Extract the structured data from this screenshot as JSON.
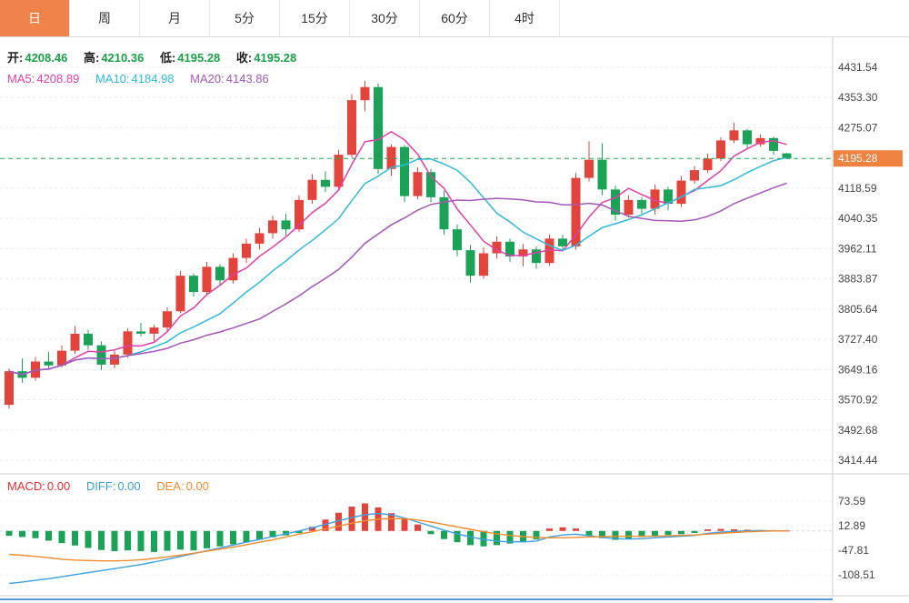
{
  "header": {
    "tabs": [
      {
        "label": "日",
        "active": true
      },
      {
        "label": "周",
        "active": false
      },
      {
        "label": "月",
        "active": false
      },
      {
        "label": "5分",
        "active": false
      },
      {
        "label": "15分",
        "active": false
      },
      {
        "label": "30分",
        "active": false
      },
      {
        "label": "60分",
        "active": false
      },
      {
        "label": "4时",
        "active": false
      }
    ]
  },
  "ohlc_bar": {
    "open_label": "开:",
    "open_value": "4208.46",
    "high_label": "高:",
    "high_value": "4210.36",
    "low_label": "低:",
    "low_value": "4195.28",
    "close_label": "收:",
    "close_value": "4195.28"
  },
  "ma_bar": {
    "ma5_label": "MA5:",
    "ma5_value": "4208.89",
    "ma10_label": "MA10:",
    "ma10_value": "4184.98",
    "ma20_label": "MA20:",
    "ma20_value": "4143.86"
  },
  "macd_bar": {
    "macd_label": "MACD:",
    "macd_value": "0.00",
    "diff_label": "DIFF:",
    "diff_value": "0.00",
    "dea_label": "DEA:",
    "dea_value": "0.00"
  },
  "price_axis": {
    "labels": [
      "4431.54",
      "4353.30",
      "4275.07",
      "4118.59",
      "4040.35",
      "3962.11",
      "3883.87",
      "3805.64",
      "3727.40",
      "3649.16",
      "3570.92",
      "3492.68",
      "3414.44"
    ],
    "current_price": "4195.28"
  },
  "macd_axis": {
    "labels": [
      "73.59",
      "12.89",
      "-47.81",
      "-108.51"
    ]
  },
  "colors": {
    "up": "#e2443c",
    "down": "#1aa357",
    "ma5": "#e03fa8",
    "ma10": "#2fb9dd",
    "ma20": "#a457b8",
    "macd": "#e03131",
    "diff": "#3d9fe0",
    "dea": "#f08c2e",
    "ohlc_value": "#1ca049",
    "price_tag_bg": "#f0823f",
    "price_line": "#2aa84f",
    "tab_active_bg": "#f0824c"
  },
  "chart_data": {
    "type": "candlestick",
    "timeframe": "日",
    "title": "",
    "price_range": [
      3403,
      4497
    ],
    "price_gridline_step": 78.235,
    "current_price": 4195.28,
    "ma_periods": [
      5,
      10,
      20
    ],
    "ohlc": [
      [
        3558,
        3652,
        3548,
        3645
      ],
      [
        3645,
        3678,
        3615,
        3628
      ],
      [
        3628,
        3682,
        3620,
        3670
      ],
      [
        3670,
        3695,
        3648,
        3660
      ],
      [
        3660,
        3712,
        3655,
        3698
      ],
      [
        3698,
        3762,
        3690,
        3742
      ],
      [
        3742,
        3752,
        3700,
        3712
      ],
      [
        3712,
        3722,
        3648,
        3662
      ],
      [
        3662,
        3698,
        3652,
        3688
      ],
      [
        3688,
        3756,
        3680,
        3748
      ],
      [
        3748,
        3770,
        3735,
        3742
      ],
      [
        3742,
        3765,
        3722,
        3758
      ],
      [
        3758,
        3810,
        3748,
        3800
      ],
      [
        3800,
        3905,
        3795,
        3892
      ],
      [
        3892,
        3898,
        3838,
        3850
      ],
      [
        3850,
        3928,
        3844,
        3915
      ],
      [
        3915,
        3922,
        3866,
        3880
      ],
      [
        3880,
        3950,
        3872,
        3938
      ],
      [
        3938,
        3988,
        3925,
        3975
      ],
      [
        3975,
        4016,
        3960,
        4002
      ],
      [
        4002,
        4048,
        3988,
        4035
      ],
      [
        4035,
        4052,
        3996,
        4012
      ],
      [
        4012,
        4100,
        4005,
        4088
      ],
      [
        4088,
        4155,
        4078,
        4140
      ],
      [
        4140,
        4162,
        4108,
        4122
      ],
      [
        4122,
        4218,
        4114,
        4205
      ],
      [
        4205,
        4362,
        4198,
        4346
      ],
      [
        4346,
        4396,
        4318,
        4380
      ],
      [
        4380,
        4390,
        4156,
        4168
      ],
      [
        4168,
        4232,
        4150,
        4225
      ],
      [
        4225,
        4230,
        4082,
        4098
      ],
      [
        4098,
        4172,
        4090,
        4160
      ],
      [
        4160,
        4168,
        4082,
        4095
      ],
      [
        4095,
        4112,
        3998,
        4012
      ],
      [
        4012,
        4025,
        3942,
        3958
      ],
      [
        3958,
        3972,
        3874,
        3892
      ],
      [
        3892,
        3965,
        3884,
        3950
      ],
      [
        3950,
        3994,
        3936,
        3980
      ],
      [
        3980,
        3988,
        3928,
        3942
      ],
      [
        3942,
        3974,
        3916,
        3960
      ],
      [
        3960,
        3968,
        3910,
        3925
      ],
      [
        3925,
        3999,
        3918,
        3988
      ],
      [
        3988,
        3998,
        3955,
        3968
      ],
      [
        3968,
        4158,
        3960,
        4145
      ],
      [
        4145,
        4240,
        4136,
        4192
      ],
      [
        4192,
        4235,
        4100,
        4115
      ],
      [
        4115,
        4125,
        4035,
        4050
      ],
      [
        4050,
        4100,
        4042,
        4088
      ],
      [
        4088,
        4096,
        4052,
        4065
      ],
      [
        4065,
        4128,
        4050,
        4115
      ],
      [
        4115,
        4122,
        4062,
        4078
      ],
      [
        4078,
        4150,
        4070,
        4138
      ],
      [
        4138,
        4176,
        4130,
        4165
      ],
      [
        4165,
        4208,
        4158,
        4195
      ],
      [
        4195,
        4250,
        4188,
        4242
      ],
      [
        4242,
        4288,
        4235,
        4268
      ],
      [
        4268,
        4272,
        4222,
        4232
      ],
      [
        4232,
        4258,
        4226,
        4248
      ],
      [
        4248,
        4252,
        4205,
        4215
      ],
      [
        4208.46,
        4210.36,
        4195.28,
        4195.28
      ]
    ],
    "macd": {
      "range": [
        -160,
        132
      ],
      "hist": [
        -12,
        -15,
        -18,
        -24,
        -30,
        -36,
        -42,
        -47,
        -50,
        -48,
        -50,
        -52,
        -49,
        -46,
        -48,
        -43,
        -38,
        -33,
        -28,
        -22,
        -16,
        -11,
        -5,
        10,
        28,
        45,
        60,
        68,
        58,
        44,
        30,
        16,
        -8,
        -20,
        -28,
        -35,
        -38,
        -35,
        -31,
        -27,
        -21,
        6,
        9,
        6,
        -12,
        -18,
        -22,
        -19,
        -15,
        -12,
        -10,
        -8,
        -5,
        4,
        5,
        4,
        3,
        2,
        2,
        1
      ],
      "diff": [
        -130,
        -126,
        -122,
        -118,
        -113,
        -108,
        -103,
        -98,
        -93,
        -88,
        -83,
        -77,
        -70,
        -63,
        -56,
        -49,
        -42,
        -35,
        -28,
        -21,
        -14,
        -7,
        0,
        8,
        16,
        25,
        33,
        40,
        43,
        40,
        32,
        22,
        12,
        2,
        -7,
        -15,
        -21,
        -25,
        -27,
        -27,
        -25,
        -15,
        -10,
        -8,
        -12,
        -16,
        -19,
        -20,
        -19,
        -17,
        -15,
        -13,
        -11,
        -6,
        -3,
        -1,
        0,
        1,
        0,
        0
      ],
      "dea": [
        -58,
        -60,
        -63,
        -66,
        -70,
        -72,
        -73,
        -74,
        -74,
        -73,
        -71,
        -68,
        -64,
        -60,
        -55,
        -50,
        -45,
        -40,
        -34,
        -28,
        -22,
        -15,
        -8,
        -2,
        5,
        12,
        19,
        25,
        29,
        31,
        30,
        27,
        22,
        16,
        10,
        4,
        -2,
        -7,
        -11,
        -14,
        -16,
        -17,
        -17,
        -16,
        -15,
        -14,
        -13,
        -13,
        -13,
        -13,
        -12,
        -11,
        -10,
        -8,
        -6,
        -4,
        -2,
        -1,
        0,
        0
      ]
    }
  }
}
